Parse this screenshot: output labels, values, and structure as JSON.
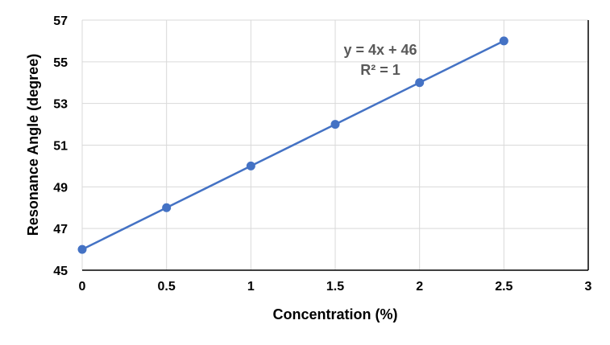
{
  "chart_data": {
    "type": "line",
    "title": "",
    "xlabel": "Concentration (%)",
    "ylabel": "Resonance Angle (degree)",
    "xlim": [
      0,
      3
    ],
    "ylim": [
      45,
      57
    ],
    "x_ticks": [
      "0",
      "0.5",
      "1",
      "1.5",
      "2",
      "2.5",
      "3"
    ],
    "y_ticks": [
      "45",
      "47",
      "49",
      "51",
      "53",
      "55",
      "57"
    ],
    "grid": true,
    "legend": "none",
    "series": [
      {
        "color": "#4472C4",
        "marker": "circle",
        "x": [
          0,
          0.5,
          1,
          1.5,
          2,
          2.5
        ],
        "y": [
          46,
          48,
          50,
          52,
          54,
          56
        ]
      }
    ],
    "annotations": {
      "equation": "y = 4x + 46",
      "r_squared": "R² = 1"
    }
  }
}
